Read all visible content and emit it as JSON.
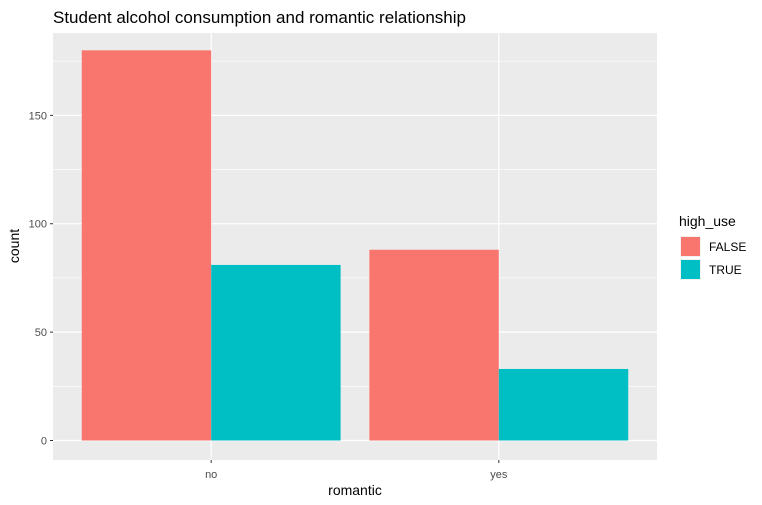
{
  "chart_data": {
    "type": "bar",
    "title": "Student alcohol consumption and romantic relationship",
    "xlabel": "romantic",
    "ylabel": "count",
    "categories": [
      "no",
      "yes"
    ],
    "yticks": [
      0,
      50,
      100,
      150
    ],
    "ylim": [
      -9,
      188
    ],
    "grid": true,
    "legend": {
      "title": "high_use",
      "placement": "right"
    },
    "series": [
      {
        "name": "FALSE",
        "color": "#f8766d",
        "values": [
          180,
          88
        ]
      },
      {
        "name": "TRUE",
        "color": "#00bfc4",
        "values": [
          81,
          33
        ]
      }
    ]
  }
}
